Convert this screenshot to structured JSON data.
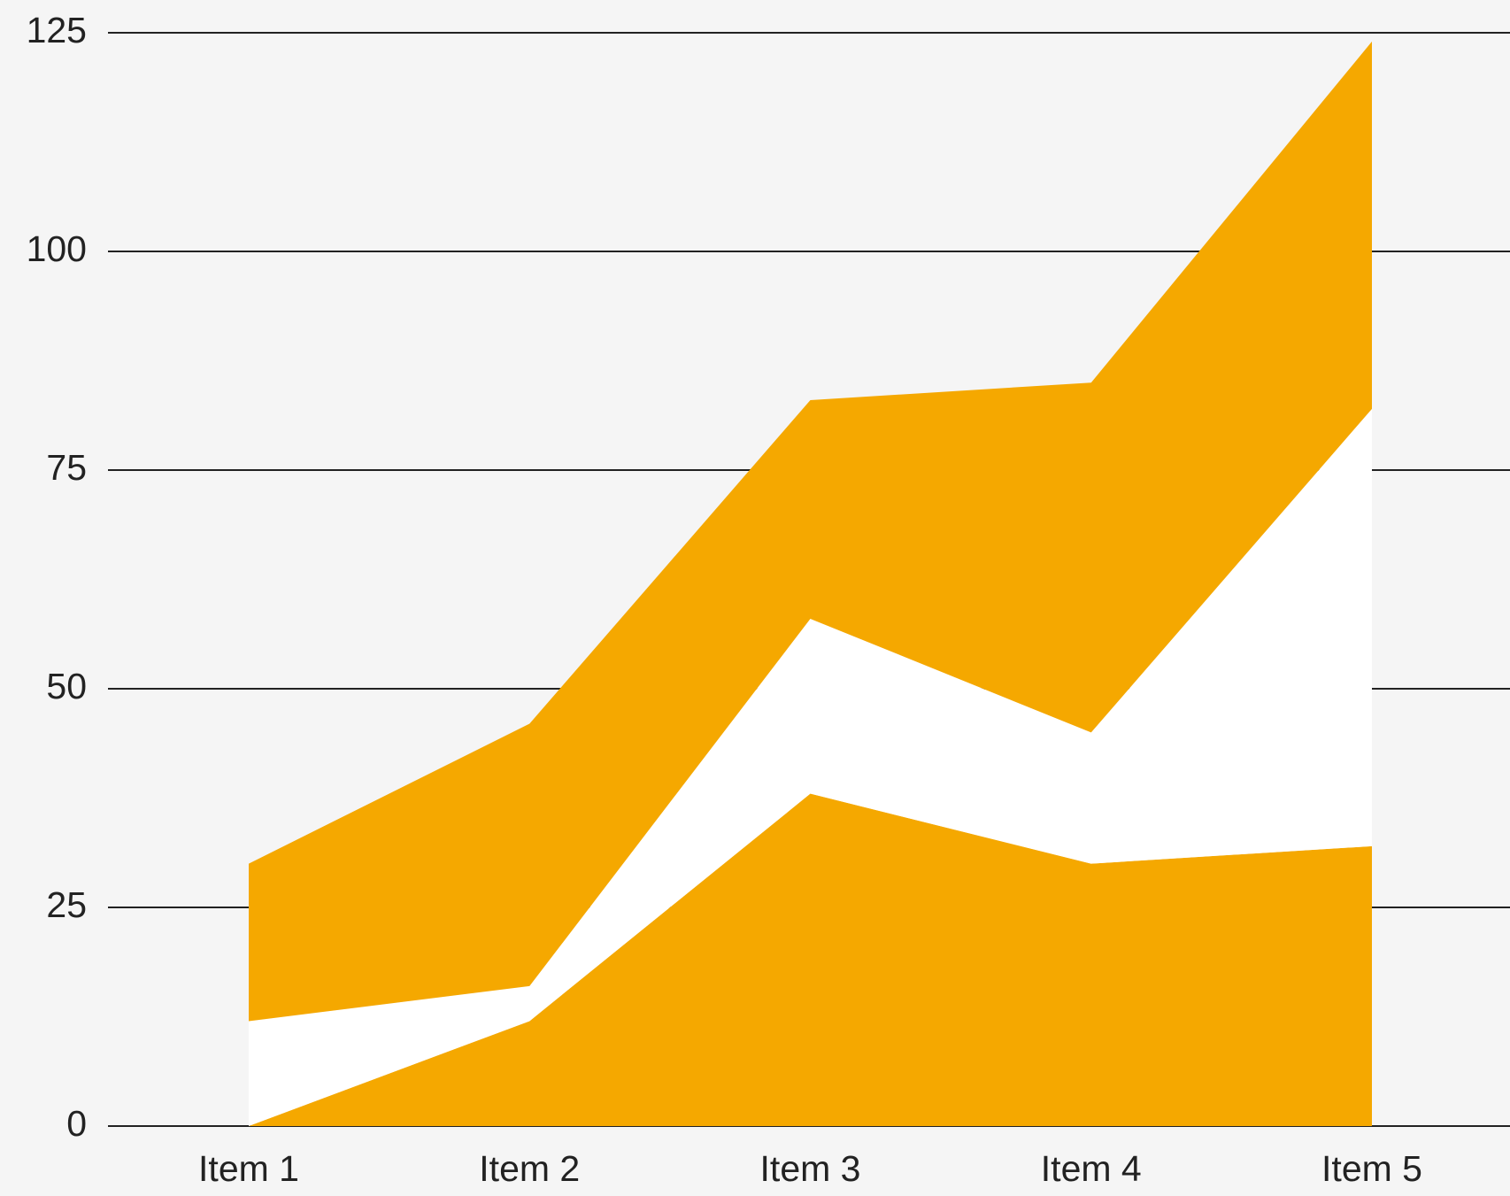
{
  "chart_data": {
    "type": "stacked-area",
    "categories": [
      "Item 1",
      "Item 2",
      "Item 3",
      "Item 4",
      "Item 5"
    ],
    "series": [
      {
        "color": "#f5a800",
        "values": [
          0,
          12,
          38,
          30,
          32
        ]
      },
      {
        "color": "#ffffff",
        "values": [
          12,
          4,
          20,
          15,
          50
        ]
      },
      {
        "color": "#f5a800",
        "values": [
          18,
          30,
          25,
          40,
          42
        ]
      }
    ],
    "ylim": [
      0,
      125
    ],
    "yticks": [
      0,
      25,
      50,
      75,
      100,
      125
    ],
    "grid": true
  }
}
